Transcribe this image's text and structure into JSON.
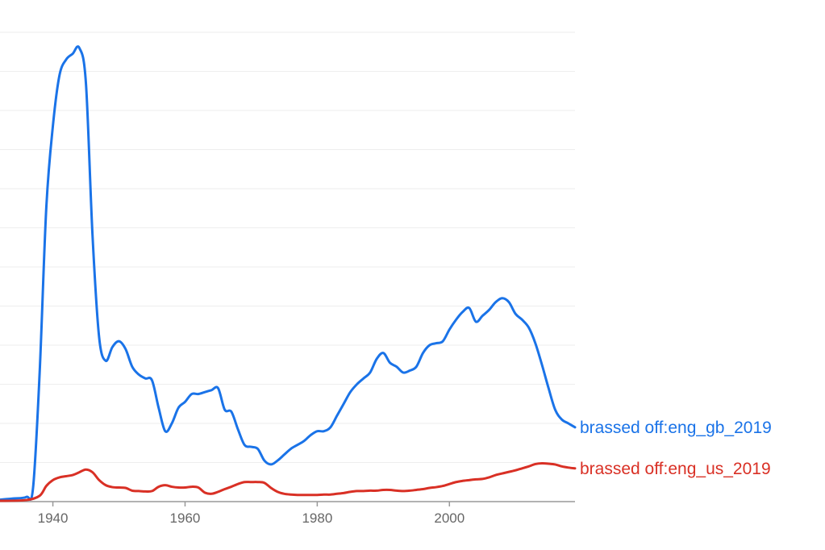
{
  "chart_data": {
    "type": "line",
    "title": "",
    "xlabel": "",
    "ylabel": "",
    "xlim": [
      1932,
      2019
    ],
    "ylim": [
      0,
      12
    ],
    "grid": true,
    "x_ticks": [
      1940,
      1960,
      1980,
      2000
    ],
    "legend": "right-inline",
    "series": [
      {
        "name": "brassed off:eng_gb_2019",
        "color": "#1a73e8",
        "points": [
          [
            1932,
            0.05
          ],
          [
            1934,
            0.08
          ],
          [
            1936,
            0.12
          ],
          [
            1937,
            0.35
          ],
          [
            1938,
            3.3
          ],
          [
            1939,
            7.5
          ],
          [
            1940,
            9.6
          ],
          [
            1941,
            10.9
          ],
          [
            1942,
            11.3
          ],
          [
            1943,
            11.45
          ],
          [
            1944,
            11.6
          ],
          [
            1945,
            10.7
          ],
          [
            1946,
            6.8
          ],
          [
            1947,
            4.2
          ],
          [
            1948,
            3.6
          ],
          [
            1949,
            3.95
          ],
          [
            1950,
            4.1
          ],
          [
            1951,
            3.9
          ],
          [
            1952,
            3.45
          ],
          [
            1953,
            3.25
          ],
          [
            1954,
            3.15
          ],
          [
            1955,
            3.1
          ],
          [
            1956,
            2.4
          ],
          [
            1957,
            1.8
          ],
          [
            1958,
            2.0
          ],
          [
            1959,
            2.4
          ],
          [
            1960,
            2.55
          ],
          [
            1961,
            2.75
          ],
          [
            1962,
            2.75
          ],
          [
            1963,
            2.8
          ],
          [
            1964,
            2.85
          ],
          [
            1965,
            2.9
          ],
          [
            1966,
            2.35
          ],
          [
            1967,
            2.3
          ],
          [
            1968,
            1.85
          ],
          [
            1969,
            1.45
          ],
          [
            1970,
            1.4
          ],
          [
            1971,
            1.35
          ],
          [
            1972,
            1.05
          ],
          [
            1973,
            0.95
          ],
          [
            1974,
            1.05
          ],
          [
            1975,
            1.2
          ],
          [
            1976,
            1.35
          ],
          [
            1977,
            1.45
          ],
          [
            1978,
            1.55
          ],
          [
            1979,
            1.7
          ],
          [
            1980,
            1.8
          ],
          [
            1981,
            1.8
          ],
          [
            1982,
            1.9
          ],
          [
            1983,
            2.2
          ],
          [
            1984,
            2.5
          ],
          [
            1985,
            2.8
          ],
          [
            1986,
            3.0
          ],
          [
            1987,
            3.15
          ],
          [
            1988,
            3.3
          ],
          [
            1989,
            3.65
          ],
          [
            1990,
            3.8
          ],
          [
            1991,
            3.55
          ],
          [
            1992,
            3.45
          ],
          [
            1993,
            3.3
          ],
          [
            1994,
            3.35
          ],
          [
            1995,
            3.45
          ],
          [
            1996,
            3.8
          ],
          [
            1997,
            4.0
          ],
          [
            1998,
            4.05
          ],
          [
            1999,
            4.1
          ],
          [
            2000,
            4.4
          ],
          [
            2001,
            4.65
          ],
          [
            2002,
            4.85
          ],
          [
            2003,
            4.95
          ],
          [
            2004,
            4.6
          ],
          [
            2005,
            4.75
          ],
          [
            2006,
            4.9
          ],
          [
            2007,
            5.1
          ],
          [
            2008,
            5.2
          ],
          [
            2009,
            5.1
          ],
          [
            2010,
            4.8
          ],
          [
            2011,
            4.65
          ],
          [
            2012,
            4.45
          ],
          [
            2013,
            4.05
          ],
          [
            2014,
            3.5
          ],
          [
            2015,
            2.9
          ],
          [
            2016,
            2.35
          ],
          [
            2017,
            2.1
          ],
          [
            2018,
            2.0
          ],
          [
            2019,
            1.9
          ]
        ]
      },
      {
        "name": "brassed off:eng_us_2019",
        "color": "#d93025",
        "points": [
          [
            1932,
            0.02
          ],
          [
            1936,
            0.04
          ],
          [
            1938,
            0.15
          ],
          [
            1939,
            0.4
          ],
          [
            1940,
            0.55
          ],
          [
            1941,
            0.62
          ],
          [
            1942,
            0.65
          ],
          [
            1943,
            0.68
          ],
          [
            1944,
            0.75
          ],
          [
            1945,
            0.82
          ],
          [
            1946,
            0.75
          ],
          [
            1947,
            0.55
          ],
          [
            1948,
            0.42
          ],
          [
            1949,
            0.37
          ],
          [
            1950,
            0.36
          ],
          [
            1951,
            0.35
          ],
          [
            1952,
            0.28
          ],
          [
            1953,
            0.27
          ],
          [
            1954,
            0.26
          ],
          [
            1955,
            0.27
          ],
          [
            1956,
            0.38
          ],
          [
            1957,
            0.42
          ],
          [
            1958,
            0.38
          ],
          [
            1959,
            0.36
          ],
          [
            1960,
            0.36
          ],
          [
            1961,
            0.38
          ],
          [
            1962,
            0.36
          ],
          [
            1963,
            0.23
          ],
          [
            1964,
            0.2
          ],
          [
            1965,
            0.25
          ],
          [
            1966,
            0.32
          ],
          [
            1967,
            0.38
          ],
          [
            1968,
            0.45
          ],
          [
            1969,
            0.5
          ],
          [
            1970,
            0.5
          ],
          [
            1971,
            0.5
          ],
          [
            1972,
            0.48
          ],
          [
            1973,
            0.35
          ],
          [
            1974,
            0.25
          ],
          [
            1975,
            0.2
          ],
          [
            1976,
            0.18
          ],
          [
            1977,
            0.17
          ],
          [
            1978,
            0.17
          ],
          [
            1979,
            0.17
          ],
          [
            1980,
            0.17
          ],
          [
            1981,
            0.18
          ],
          [
            1982,
            0.18
          ],
          [
            1983,
            0.2
          ],
          [
            1984,
            0.22
          ],
          [
            1985,
            0.25
          ],
          [
            1986,
            0.27
          ],
          [
            1987,
            0.27
          ],
          [
            1988,
            0.28
          ],
          [
            1989,
            0.28
          ],
          [
            1990,
            0.3
          ],
          [
            1991,
            0.3
          ],
          [
            1992,
            0.28
          ],
          [
            1993,
            0.27
          ],
          [
            1994,
            0.28
          ],
          [
            1995,
            0.3
          ],
          [
            1996,
            0.32
          ],
          [
            1997,
            0.35
          ],
          [
            1998,
            0.37
          ],
          [
            1999,
            0.4
          ],
          [
            2000,
            0.45
          ],
          [
            2001,
            0.5
          ],
          [
            2002,
            0.53
          ],
          [
            2003,
            0.55
          ],
          [
            2004,
            0.57
          ],
          [
            2005,
            0.58
          ],
          [
            2006,
            0.62
          ],
          [
            2007,
            0.68
          ],
          [
            2008,
            0.72
          ],
          [
            2009,
            0.76
          ],
          [
            2010,
            0.8
          ],
          [
            2011,
            0.85
          ],
          [
            2012,
            0.9
          ],
          [
            2013,
            0.96
          ],
          [
            2014,
            0.98
          ],
          [
            2015,
            0.97
          ],
          [
            2016,
            0.95
          ],
          [
            2017,
            0.9
          ],
          [
            2018,
            0.87
          ],
          [
            2019,
            0.85
          ]
        ]
      }
    ]
  }
}
